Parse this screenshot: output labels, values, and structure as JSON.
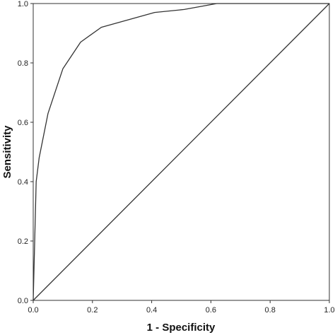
{
  "chart_data": {
    "type": "line",
    "xlabel": "1 - Specificity",
    "ylabel": "Sensitivity",
    "xlim": [
      0,
      1
    ],
    "ylim": [
      0,
      1
    ],
    "x_ticks": [
      "0.0",
      "0.2",
      "0.4",
      "0.6",
      "0.8",
      "1.0"
    ],
    "y_ticks": [
      "0.0",
      "0.2",
      "0.4",
      "0.6",
      "0.8",
      "1.0"
    ],
    "grid": false,
    "series": [
      {
        "x": [
          0.0,
          0.005,
          0.01,
          0.02,
          0.05,
          0.1,
          0.16,
          0.23,
          0.32,
          0.41,
          0.51,
          0.62,
          0.75,
          1.0
        ],
        "y": [
          0.0,
          0.2,
          0.4,
          0.48,
          0.63,
          0.78,
          0.87,
          0.92,
          0.945,
          0.97,
          0.98,
          1.0,
          1.0,
          1.0
        ]
      },
      {
        "x": [
          0.0,
          1.0
        ],
        "y": [
          0.0,
          1.0
        ]
      }
    ],
    "colors": {
      "line": "#333333",
      "frame": "#333333"
    }
  }
}
